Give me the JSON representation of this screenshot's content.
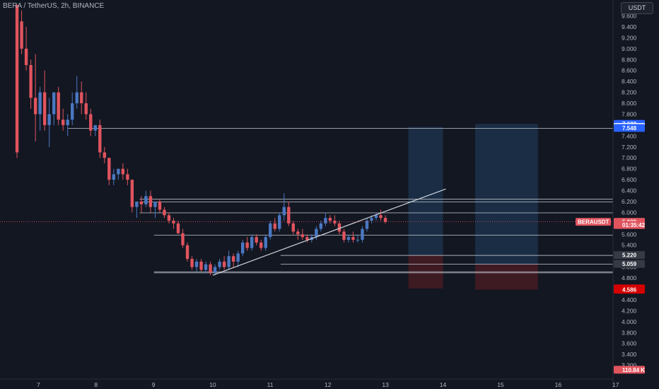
{
  "header": {
    "symbol_line": "BERA / TetherUS, 2h, BINANCE",
    "currency_button": "USDT"
  },
  "colors": {
    "background": "#131722",
    "up": "#4a78c2",
    "down": "#e0545e",
    "grid_text": "#b2b5be",
    "level_line": "#c8cad1",
    "target_zone": "#1d3552",
    "stop_zone": "#4a1c24"
  },
  "price_axis": {
    "ticks": [
      "9.600",
      "9.400",
      "9.200",
      "9.000",
      "8.800",
      "8.600",
      "8.400",
      "8.200",
      "8.000",
      "7.800",
      "7.600",
      "7.400",
      "7.200",
      "7.000",
      "6.800",
      "6.600",
      "6.400",
      "6.200",
      "6.000",
      "5.800",
      "5.600",
      "5.400",
      "5.200",
      "5.000",
      "4.800",
      "4.600",
      "4.400",
      "4.200",
      "4.000",
      "3.800",
      "3.600",
      "3.400",
      "3.200"
    ],
    "badges": [
      {
        "text": "7.623",
        "value": 7.623,
        "bg": "#2962ff",
        "fg": "#ffffff"
      },
      {
        "text": "7.567",
        "value": 7.567,
        "bg": "#ffffff",
        "fg": "#131722"
      },
      {
        "text": "7.548",
        "value": 7.548,
        "bg": "#2962ff",
        "fg": "#ffffff"
      },
      {
        "text": "5.829",
        "value": 5.829,
        "bg": "#e0545e",
        "fg": "#ffffff"
      },
      {
        "text": "01:35:42",
        "value": 5.77,
        "bg": "#e0545e",
        "fg": "#ffffff"
      },
      {
        "text": "5.220",
        "value": 5.22,
        "bg": "#363a45",
        "fg": "#ffffff"
      },
      {
        "text": "5.059",
        "value": 5.059,
        "bg": "#363a45",
        "fg": "#ffffff"
      },
      {
        "text": "4.609",
        "value": 4.609,
        "bg": "#d50000",
        "fg": "#ffffff"
      },
      {
        "text": "4.586",
        "value": 4.586,
        "bg": "#d50000",
        "fg": "#ffffff"
      },
      {
        "text": "110.84 K",
        "value": 3.12,
        "bg": "#e0545e",
        "fg": "#ffffff"
      }
    ],
    "symbol_badge": "BERAUSDT"
  },
  "time_axis": {
    "ticks": [
      {
        "label": "7",
        "day": 7
      },
      {
        "label": "8",
        "day": 8
      },
      {
        "label": "9",
        "day": 9
      },
      {
        "label": "10",
        "day": 10
      },
      {
        "label": "11",
        "day": 11
      },
      {
        "label": "12",
        "day": 12
      },
      {
        "label": "13",
        "day": 13
      },
      {
        "label": "14",
        "day": 14
      },
      {
        "label": "15",
        "day": 15
      },
      {
        "label": "16",
        "day": 16
      },
      {
        "label": "17",
        "day": 17
      }
    ]
  },
  "chart_data": {
    "type": "candlestick",
    "title": "BERA / TetherUS, 2h, BINANCE",
    "ylim": [
      3.1,
      9.8
    ],
    "xlim": [
      6.53,
      17.0
    ],
    "last_price": 5.829,
    "candles": [
      [
        6.62,
        9.8,
        9.8,
        7.0,
        7.1
      ],
      [
        6.7,
        9.5,
        9.7,
        8.9,
        9.0
      ],
      [
        6.78,
        9.0,
        9.4,
        8.6,
        8.7
      ],
      [
        6.86,
        8.7,
        8.8,
        7.9,
        8.1
      ],
      [
        6.94,
        8.1,
        8.9,
        7.3,
        7.8
      ],
      [
        7.02,
        7.8,
        8.3,
        7.5,
        8.2
      ],
      [
        7.1,
        8.2,
        8.6,
        7.5,
        7.6
      ],
      [
        7.18,
        7.6,
        8.1,
        7.2,
        7.8
      ],
      [
        7.26,
        7.8,
        8.2,
        7.6,
        8.2
      ],
      [
        7.34,
        8.2,
        8.3,
        7.6,
        7.7
      ],
      [
        7.42,
        7.7,
        7.9,
        7.5,
        7.6
      ],
      [
        7.5,
        7.6,
        7.8,
        7.4,
        7.7
      ],
      [
        7.58,
        7.7,
        8.2,
        7.6,
        8.0
      ],
      [
        7.66,
        8.0,
        8.5,
        7.9,
        8.2
      ],
      [
        7.74,
        8.2,
        8.4,
        7.8,
        8.0
      ],
      [
        7.82,
        8.0,
        8.2,
        7.7,
        7.8
      ],
      [
        7.9,
        7.8,
        7.9,
        7.4,
        7.5
      ],
      [
        7.98,
        7.5,
        7.6,
        7.4,
        7.6
      ],
      [
        8.06,
        7.6,
        7.7,
        7.0,
        7.1
      ],
      [
        8.14,
        7.1,
        7.2,
        6.9,
        7.0
      ],
      [
        8.22,
        7.0,
        7.0,
        6.5,
        6.6
      ],
      [
        8.3,
        6.6,
        6.8,
        6.5,
        6.7
      ],
      [
        8.38,
        6.7,
        6.8,
        6.6,
        6.8
      ],
      [
        8.46,
        6.8,
        6.9,
        6.6,
        6.7
      ],
      [
        8.54,
        6.7,
        6.8,
        6.5,
        6.6
      ],
      [
        8.62,
        6.6,
        6.6,
        6.0,
        6.1
      ],
      [
        8.7,
        6.1,
        6.2,
        5.9,
        6.2
      ],
      [
        8.78,
        6.2,
        6.3,
        6.0,
        6.15
      ],
      [
        8.86,
        6.15,
        6.4,
        6.1,
        6.3
      ],
      [
        8.94,
        6.3,
        6.4,
        6.0,
        6.1
      ],
      [
        9.02,
        6.1,
        6.2,
        5.9,
        6.2
      ],
      [
        9.1,
        6.2,
        6.25,
        6.0,
        6.05
      ],
      [
        9.18,
        6.05,
        6.1,
        5.9,
        5.95
      ],
      [
        9.26,
        5.95,
        6.0,
        5.8,
        5.85
      ],
      [
        9.34,
        5.85,
        5.9,
        5.7,
        5.8
      ],
      [
        9.42,
        5.8,
        5.85,
        5.6,
        5.62
      ],
      [
        9.5,
        5.62,
        5.7,
        5.35,
        5.4
      ],
      [
        9.58,
        5.4,
        5.45,
        5.1,
        5.15
      ],
      [
        9.66,
        5.15,
        5.2,
        4.95,
        5.0
      ],
      [
        9.74,
        5.0,
        5.15,
        4.9,
        5.1
      ],
      [
        9.82,
        5.1,
        5.15,
        4.92,
        4.95
      ],
      [
        9.9,
        4.95,
        5.1,
        4.88,
        5.05
      ],
      [
        9.98,
        5.05,
        5.1,
        4.85,
        4.9
      ],
      [
        10.06,
        4.9,
        5.05,
        4.85,
        5.0
      ],
      [
        10.14,
        5.0,
        5.15,
        4.95,
        5.1
      ],
      [
        10.22,
        5.1,
        5.2,
        4.95,
        5.0
      ],
      [
        10.3,
        5.0,
        5.3,
        4.95,
        5.2
      ],
      [
        10.38,
        5.2,
        5.25,
        5.0,
        5.1
      ],
      [
        10.46,
        5.1,
        5.3,
        5.0,
        5.25
      ],
      [
        10.54,
        5.25,
        5.5,
        5.2,
        5.45
      ],
      [
        10.62,
        5.45,
        5.55,
        5.3,
        5.35
      ],
      [
        10.7,
        5.35,
        5.6,
        5.3,
        5.55
      ],
      [
        10.78,
        5.55,
        5.6,
        5.4,
        5.45
      ],
      [
        10.86,
        5.45,
        5.5,
        5.3,
        5.35
      ],
      [
        10.94,
        5.35,
        5.6,
        5.3,
        5.55
      ],
      [
        11.02,
        5.55,
        5.85,
        5.5,
        5.8
      ],
      [
        11.1,
        5.8,
        5.9,
        5.65,
        5.7
      ],
      [
        11.18,
        5.7,
        6.0,
        5.65,
        5.95
      ],
      [
        11.26,
        5.95,
        6.35,
        5.85,
        6.1
      ],
      [
        11.34,
        6.1,
        6.2,
        5.75,
        5.8
      ],
      [
        11.42,
        5.8,
        5.85,
        5.6,
        5.65
      ],
      [
        11.5,
        5.65,
        5.7,
        5.5,
        5.6
      ],
      [
        11.58,
        5.6,
        5.7,
        5.5,
        5.55
      ],
      [
        11.66,
        5.55,
        5.6,
        5.45,
        5.5
      ],
      [
        11.74,
        5.5,
        5.6,
        5.45,
        5.55
      ],
      [
        11.82,
        5.55,
        5.75,
        5.5,
        5.7
      ],
      [
        11.9,
        5.7,
        5.85,
        5.65,
        5.8
      ],
      [
        11.98,
        5.8,
        6.0,
        5.75,
        5.9
      ],
      [
        12.06,
        5.9,
        5.95,
        5.8,
        5.85
      ],
      [
        12.14,
        5.85,
        5.95,
        5.75,
        5.8
      ],
      [
        12.22,
        5.8,
        5.85,
        5.6,
        5.65
      ],
      [
        12.3,
        5.65,
        5.7,
        5.45,
        5.5
      ],
      [
        12.38,
        5.5,
        5.6,
        5.45,
        5.55
      ],
      [
        12.46,
        5.55,
        5.65,
        5.45,
        5.5
      ],
      [
        12.54,
        5.5,
        5.6,
        5.45,
        5.5
      ],
      [
        12.62,
        5.5,
        5.75,
        5.45,
        5.7
      ],
      [
        12.7,
        5.7,
        5.9,
        5.65,
        5.85
      ],
      [
        12.78,
        5.85,
        5.95,
        5.8,
        5.9
      ],
      [
        12.86,
        5.9,
        6.0,
        5.85,
        5.95
      ],
      [
        12.94,
        5.95,
        6.05,
        5.85,
        5.9
      ],
      [
        13.02,
        5.9,
        5.95,
        5.8,
        5.83
      ]
    ],
    "horizontal_levels": [
      7.548,
      6.25,
      6.2,
      6.0,
      5.59,
      5.22,
      5.059,
      4.92,
      4.9
    ],
    "trendline": {
      "start": [
        10.02,
        4.85
      ],
      "end": [
        14.07,
        6.43
      ]
    },
    "trade_zones": [
      {
        "x_start": 13.42,
        "x_end": 14.02,
        "target": 7.567,
        "entry": 5.22,
        "stop": 4.609
      },
      {
        "x_start": 14.58,
        "x_end": 15.67,
        "target": 7.623,
        "entry": 5.059,
        "stop": 4.586
      }
    ]
  }
}
